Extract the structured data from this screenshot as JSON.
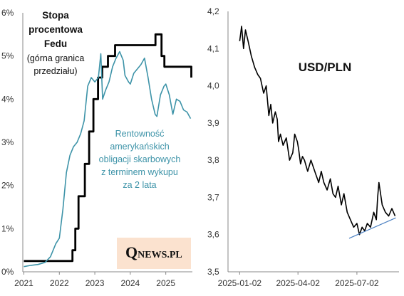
{
  "chart_data": [
    {
      "type": "line",
      "title": "",
      "xlabel": "",
      "ylabel": "",
      "x_range": [
        2020.97,
        2025.75
      ],
      "ylim": [
        0,
        6
      ],
      "x_ticks": [
        2021,
        2022,
        2023,
        2024,
        2025
      ],
      "x_tick_labels": [
        "2021",
        "2022",
        "2023",
        "2024",
        "2025"
      ],
      "y_ticks": [
        0,
        1,
        2,
        3,
        4,
        5,
        6
      ],
      "y_tick_labels": [
        "0%",
        "1%",
        "2%",
        "3%",
        "4%",
        "5%",
        "6%"
      ],
      "grid": false,
      "annotations": {
        "fed_title": "Stopa",
        "fed_title_2": "procentowa",
        "fed_title_3": "Fedu",
        "fed_sub": "(górna granica",
        "fed_sub_2": "przedziału)",
        "yield_1": "Rentowność",
        "yield_2": "amerykańskich",
        "yield_3": "obligacji skarbowych",
        "yield_4": "z terminem wykupu",
        "yield_5": "za 2 lata"
      },
      "logo": {
        "q": "Q",
        "rest": "NEWS.PL",
        "bg_color": "#fbe2cf"
      },
      "series": [
        {
          "color": "#000000",
          "step": true,
          "x": [
            2021.0,
            2022.2,
            2022.37,
            2022.45,
            2022.54,
            2022.72,
            2022.84,
            2022.96,
            2023.09,
            2023.21,
            2023.37,
            2023.57,
            2024.71,
            2024.88,
            2024.96,
            2025.72
          ],
          "y": [
            0.25,
            0.25,
            0.5,
            1.0,
            1.75,
            2.5,
            3.25,
            4.0,
            4.5,
            4.75,
            5.0,
            5.25,
            5.5,
            5.0,
            4.75,
            4.5
          ]
        },
        {
          "color": "#3d93a8",
          "step": false,
          "x": [
            2021.0,
            2021.2,
            2021.4,
            2021.6,
            2021.75,
            2021.9,
            2022.0,
            2022.1,
            2022.2,
            2022.3,
            2022.4,
            2022.5,
            2022.6,
            2022.7,
            2022.8,
            2022.9,
            2023.0,
            2023.1,
            2023.17,
            2023.22,
            2023.3,
            2023.4,
            2023.5,
            2023.6,
            2023.7,
            2023.8,
            2023.85,
            2023.95,
            2024.0,
            2024.1,
            2024.2,
            2024.3,
            2024.4,
            2024.5,
            2024.6,
            2024.7,
            2024.75,
            2024.85,
            2024.95,
            2025.0,
            2025.1,
            2025.2,
            2025.3,
            2025.4,
            2025.5,
            2025.6,
            2025.7
          ],
          "y": [
            0.12,
            0.15,
            0.17,
            0.22,
            0.35,
            0.65,
            0.78,
            1.45,
            2.3,
            2.7,
            2.9,
            3.0,
            3.2,
            3.5,
            4.3,
            4.5,
            4.4,
            4.5,
            5.05,
            4.0,
            4.2,
            4.4,
            4.75,
            4.95,
            5.1,
            4.9,
            4.55,
            4.4,
            4.35,
            4.6,
            4.7,
            4.8,
            4.95,
            4.5,
            4.0,
            3.65,
            3.6,
            4.1,
            4.3,
            4.35,
            4.1,
            3.65,
            4.0,
            3.95,
            3.75,
            3.7,
            3.55
          ]
        }
      ]
    },
    {
      "type": "line",
      "title": "USD/PLN",
      "xlabel": "",
      "ylabel": "",
      "x_range": [
        "2024-12-15",
        "2025-09-05"
      ],
      "ylim": [
        3.5,
        4.2
      ],
      "x_ticks": [
        "2025-01-02",
        "2025-04-02",
        "2025-07-02"
      ],
      "x_tick_labels": [
        "2025-01-02",
        "2025-04-02",
        "2025-07-02"
      ],
      "y_ticks": [
        3.5,
        3.6,
        3.7,
        3.8,
        3.9,
        4.0,
        4.1,
        4.2
      ],
      "y_tick_labels": [
        "3,5",
        "3,6",
        "3,7",
        "3,8",
        "3,9",
        "4,0",
        "4,1",
        "4,2"
      ],
      "grid": false,
      "series": [
        {
          "color": "#000000",
          "x": [
            "2025-01-02",
            "2025-01-05",
            "2025-01-08",
            "2025-01-11",
            "2025-01-15",
            "2025-01-20",
            "2025-01-25",
            "2025-01-30",
            "2025-02-03",
            "2025-02-08",
            "2025-02-12",
            "2025-02-16",
            "2025-02-19",
            "2025-02-22",
            "2025-02-26",
            "2025-03-01",
            "2025-03-03",
            "2025-03-06",
            "2025-03-10",
            "2025-03-15",
            "2025-03-20",
            "2025-03-25",
            "2025-03-28",
            "2025-04-01",
            "2025-04-03",
            "2025-04-06",
            "2025-04-09",
            "2025-04-12",
            "2025-04-17",
            "2025-04-22",
            "2025-04-26",
            "2025-04-30",
            "2025-05-04",
            "2025-05-08",
            "2025-05-12",
            "2025-05-17",
            "2025-05-22",
            "2025-05-26",
            "2025-05-30",
            "2025-06-03",
            "2025-06-08",
            "2025-06-12",
            "2025-06-17",
            "2025-06-22",
            "2025-06-27",
            "2025-07-02",
            "2025-07-06",
            "2025-07-10",
            "2025-07-14",
            "2025-07-18",
            "2025-07-23",
            "2025-07-28",
            "2025-08-01",
            "2025-08-03",
            "2025-08-05",
            "2025-08-10",
            "2025-08-15",
            "2025-08-20",
            "2025-08-25",
            "2025-08-30"
          ],
          "y": [
            4.12,
            4.16,
            4.1,
            4.15,
            4.12,
            4.08,
            4.05,
            4.03,
            4.02,
            3.98,
            4.0,
            3.92,
            3.95,
            3.9,
            3.93,
            3.91,
            3.85,
            3.87,
            3.84,
            3.86,
            3.8,
            3.82,
            3.87,
            3.85,
            3.83,
            3.79,
            3.81,
            3.8,
            3.77,
            3.8,
            3.78,
            3.76,
            3.74,
            3.77,
            3.74,
            3.72,
            3.75,
            3.71,
            3.7,
            3.73,
            3.68,
            3.71,
            3.66,
            3.64,
            3.62,
            3.63,
            3.6,
            3.62,
            3.61,
            3.63,
            3.62,
            3.66,
            3.64,
            3.7,
            3.74,
            3.68,
            3.66,
            3.65,
            3.67,
            3.65
          ]
        },
        {
          "color": "#4a7fc1",
          "trend": true,
          "x": [
            "2025-06-20",
            "2025-08-31"
          ],
          "y": [
            3.59,
            3.645
          ]
        }
      ]
    }
  ]
}
